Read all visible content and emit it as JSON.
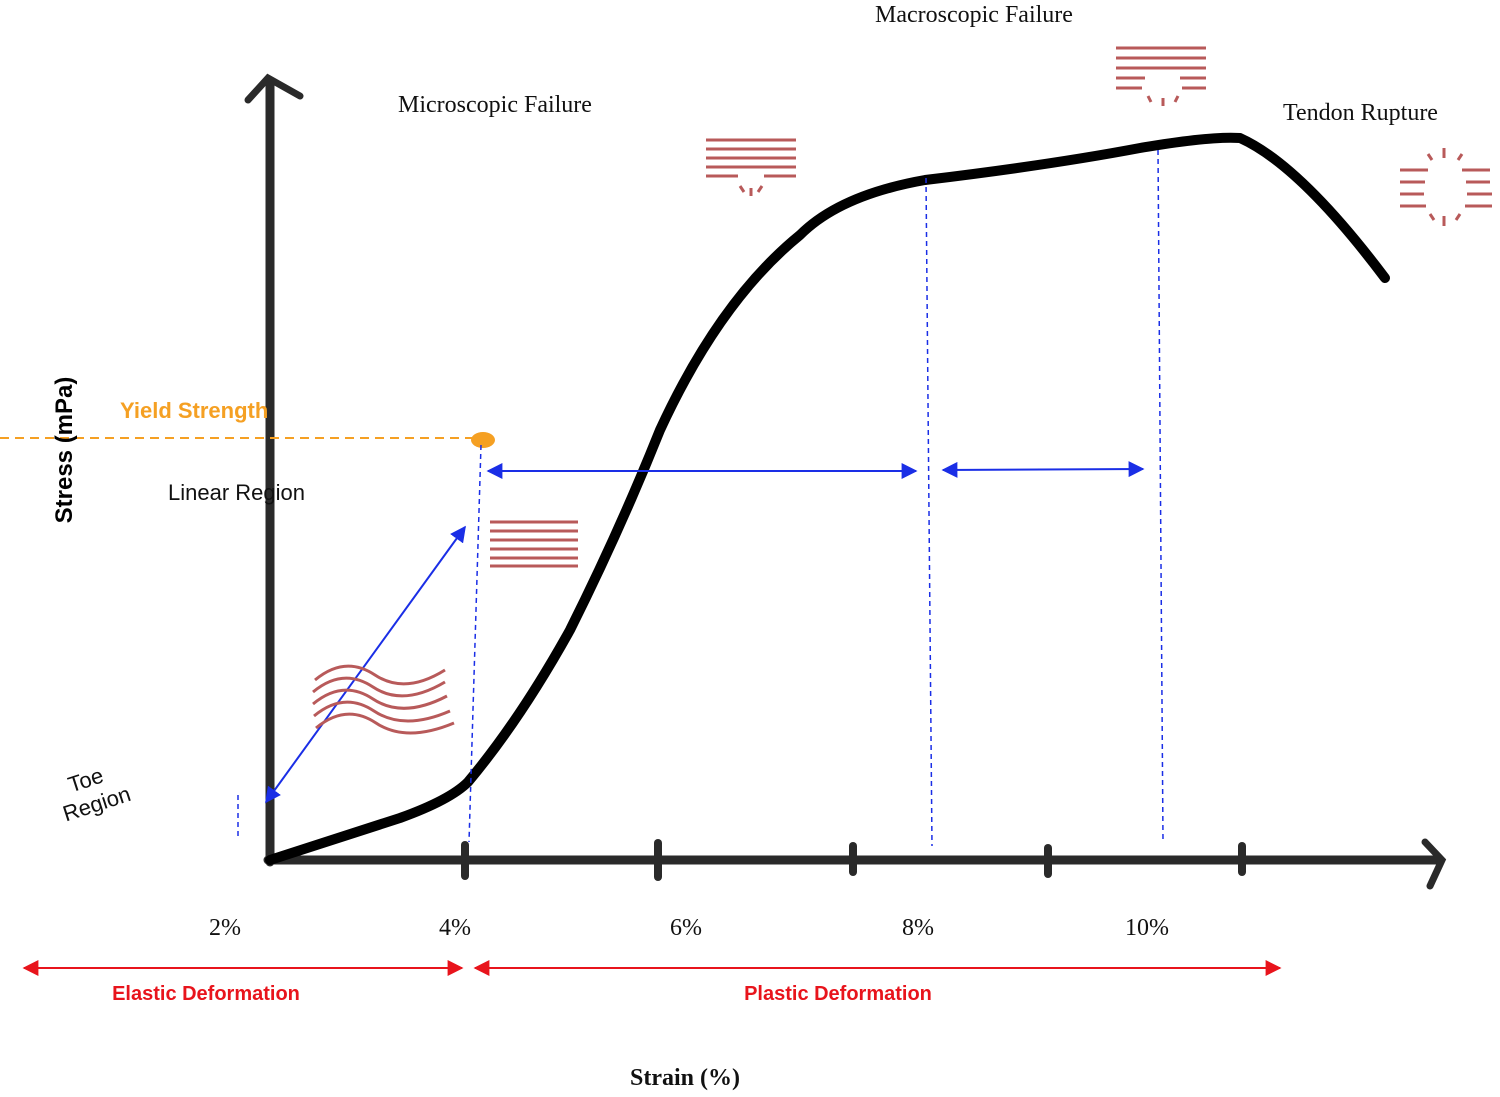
{
  "title_labels": {
    "microscopic": "Microscopic Failure",
    "macroscopic": "Macroscopic Failure",
    "rupture": "Tendon Rupture"
  },
  "yield": "Yield Strength",
  "regions": {
    "linear": "Linear Region",
    "toe": [
      "Toe",
      "Region"
    ]
  },
  "axes": {
    "y_label": "Stress (mPa)",
    "x_label": "Strain (%)",
    "x_ticks": [
      "2%",
      "4%",
      "6%",
      "8%",
      "10%"
    ]
  },
  "deformation": {
    "elastic": "Elastic Deformation",
    "plastic": "Plastic Deformation"
  }
}
